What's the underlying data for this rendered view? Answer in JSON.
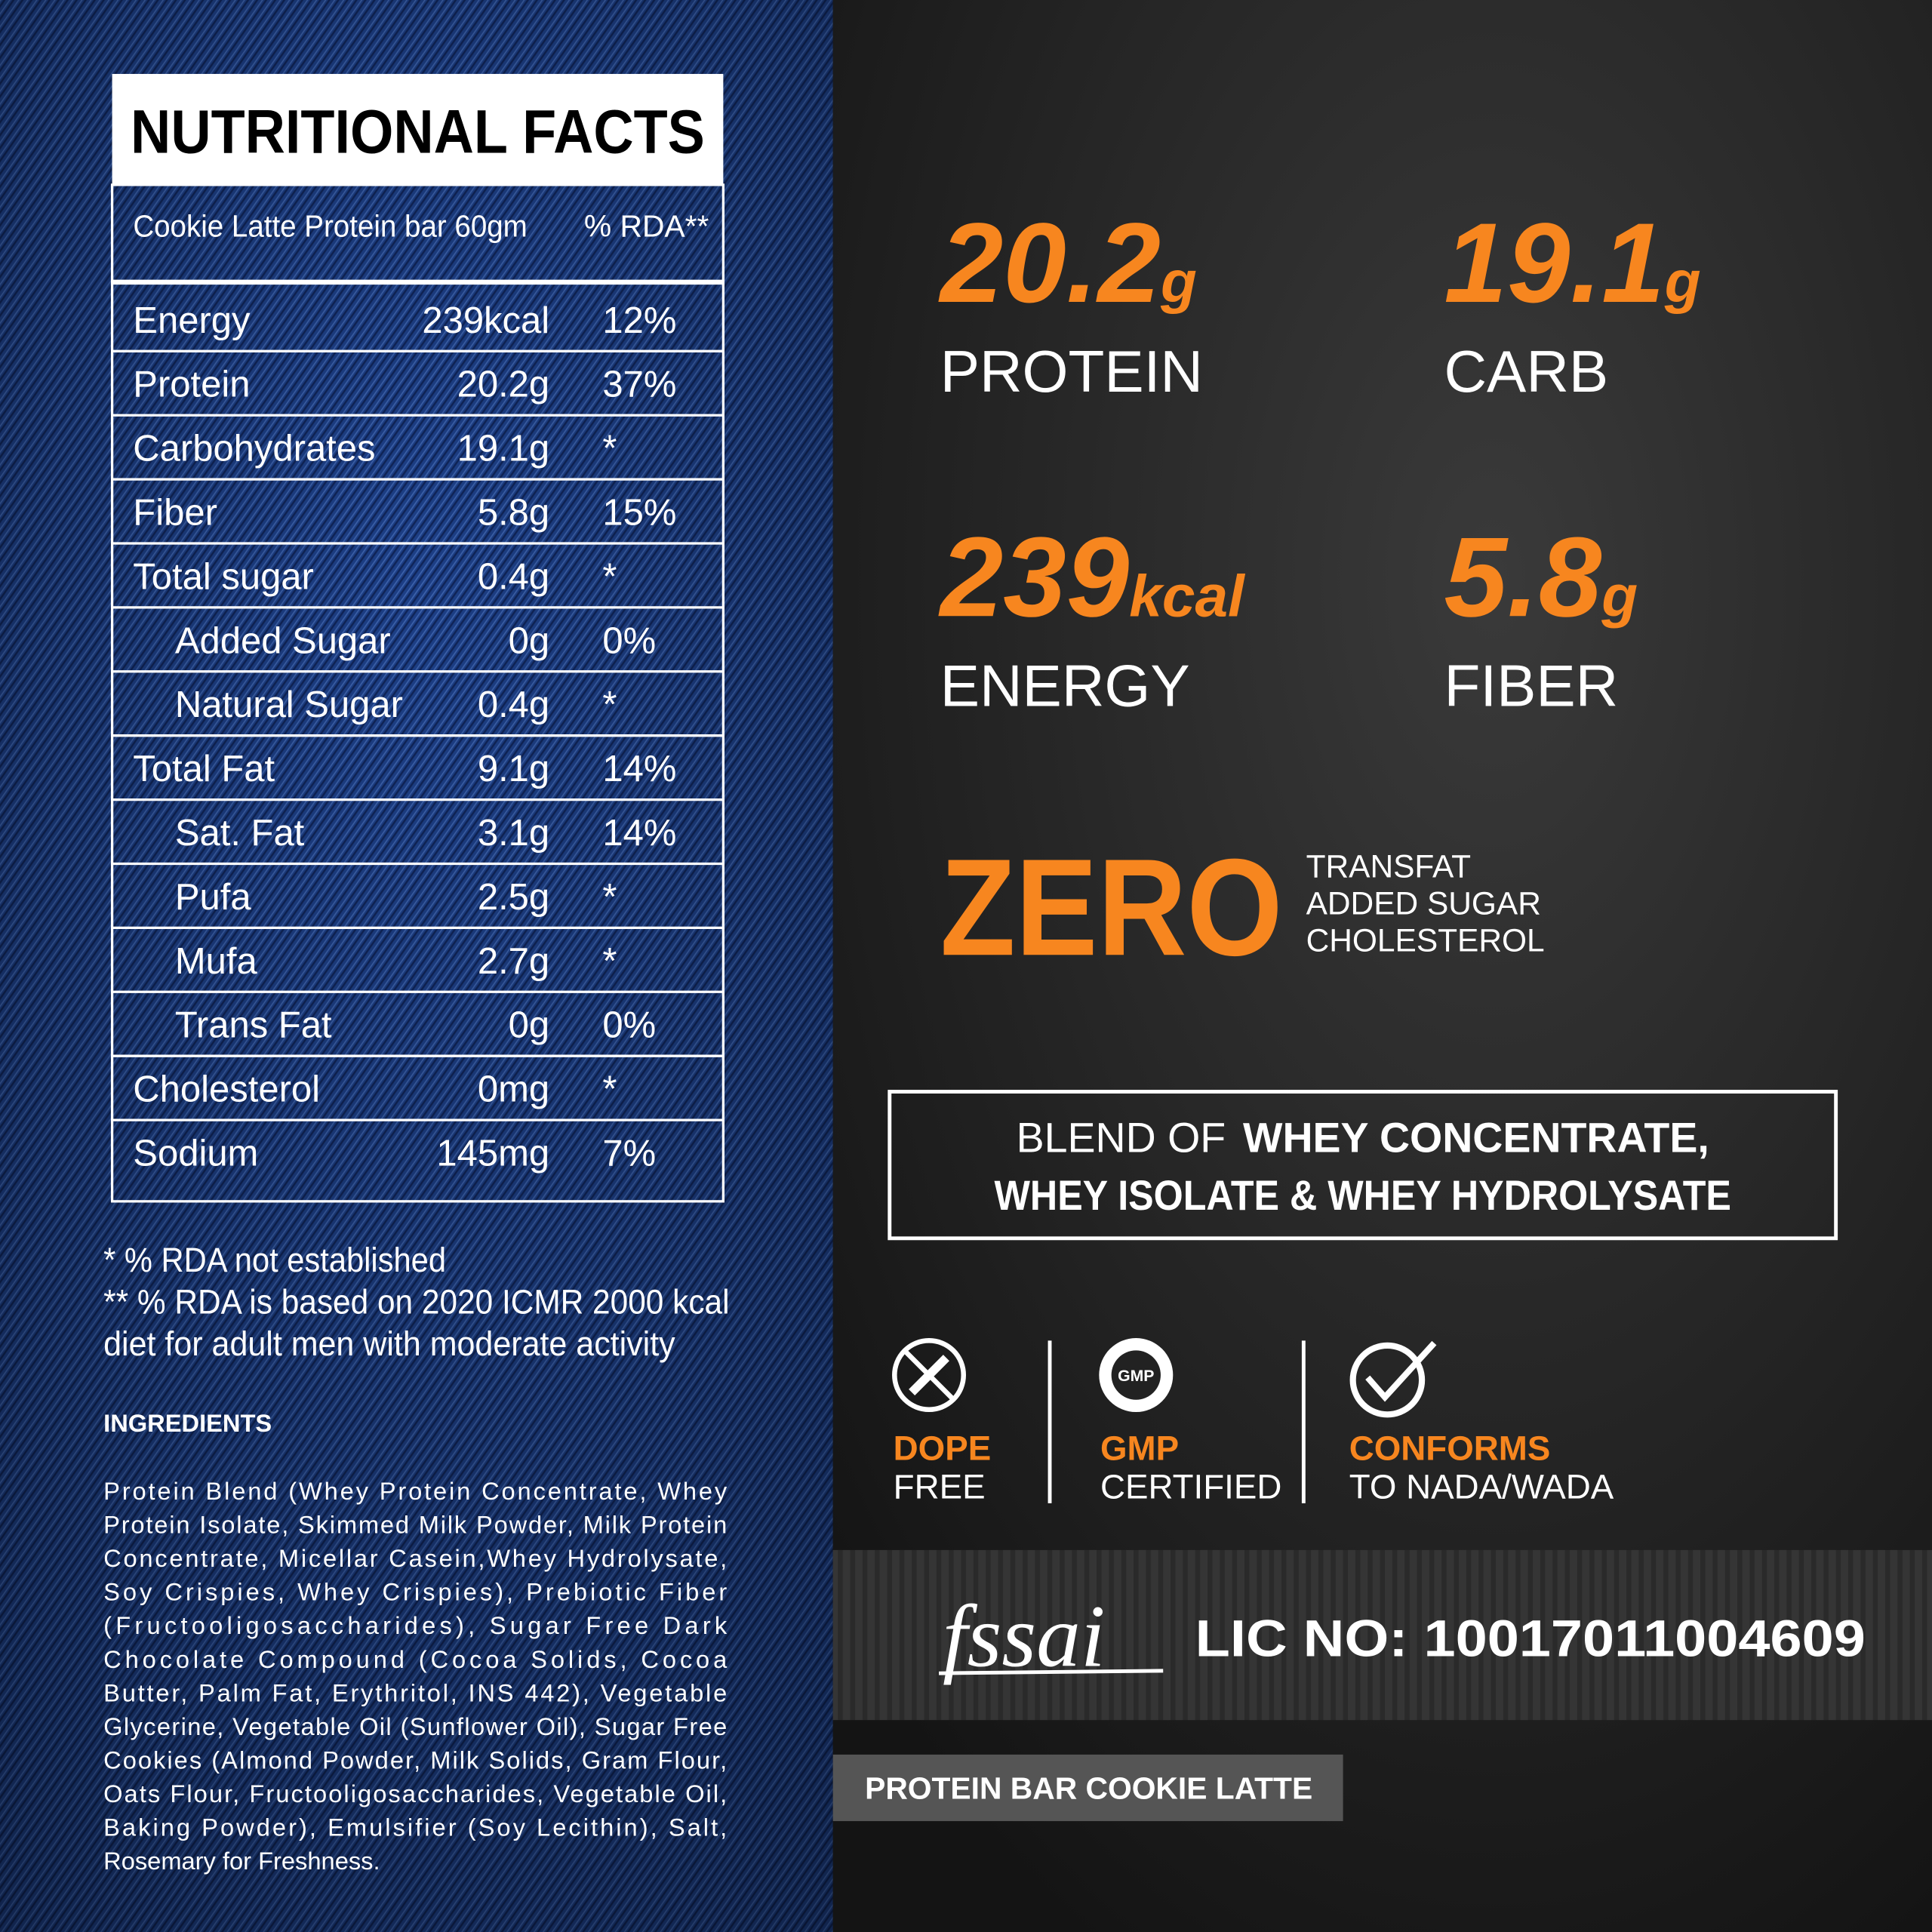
{
  "nutrition": {
    "title": "NUTRITIONAL FACTS",
    "serving": "Cookie Latte Protein bar 60gm",
    "rda_header": "% RDA**",
    "rows": [
      {
        "name": "Energy",
        "amount": "239kcal",
        "rda": "12%"
      },
      {
        "name": "Protein",
        "amount": "20.2g",
        "rda": "37%"
      },
      {
        "name": "Carbohydrates",
        "amount": "19.1g",
        "rda": "*"
      },
      {
        "name": "Fiber",
        "amount": "5.8g",
        "rda": "15%"
      },
      {
        "name": "Total sugar",
        "amount": "0.4g",
        "rda": "*"
      },
      {
        "name": "Added Sugar",
        "amount": "0g",
        "rda": "0%",
        "indent": true
      },
      {
        "name": "Natural Sugar",
        "amount": "0.4g",
        "rda": "*",
        "indent": true
      },
      {
        "name": "Total Fat",
        "amount": "9.1g",
        "rda": "14%"
      },
      {
        "name": "Sat. Fat",
        "amount": "3.1g",
        "rda": "14%",
        "indent": true
      },
      {
        "name": "Pufa",
        "amount": "2.5g",
        "rda": "*",
        "indent": true
      },
      {
        "name": "Mufa",
        "amount": "2.7g",
        "rda": "*",
        "indent": true
      },
      {
        "name": "Trans Fat",
        "amount": "0g",
        "rda": "0%",
        "indent": true
      },
      {
        "name": "Cholesterol",
        "amount": "0mg",
        "rda": "*"
      },
      {
        "name": "Sodium",
        "amount": "145mg",
        "rda": "7%"
      }
    ]
  },
  "footnotes": [
    "* % RDA not established",
    "** % RDA is based on 2020 ICMR 2000 kcal",
    "diet for adult men with moderate activity"
  ],
  "ingredients": {
    "title": "INGREDIENTS",
    "lines": [
      "Protein Blend (Whey Protein Concentrate, Whey",
      "Protein Isolate, Skimmed Milk Powder, Milk Protein",
      "Concentrate, Micellar Casein,Whey Hydrolysate,",
      "Soy Crispies, Whey Crispies), Prebiotic Fiber",
      "(Fructooligosaccharides), Sugar Free Dark",
      "Chocolate Compound (Cocoa Solids, Cocoa",
      "Butter, Palm Fat, Erythritol, INS 442), Vegetable",
      "Glycerine, Vegetable Oil (Sunflower Oil), Sugar Free",
      "Cookies (Almond Powder, Milk Solids, Gram Flour,",
      "Oats Flour, Fructooligosaccharides, Vegetable Oil,",
      "Baking Powder), Emulsifier (Soy Lecithin), Salt,",
      "Rosemary for Freshness."
    ]
  },
  "highlights": [
    {
      "value": "20.2",
      "unit": "g",
      "label": "PROTEIN"
    },
    {
      "value": "19.1",
      "unit": "g",
      "label": "CARB"
    },
    {
      "value": "239",
      "unit": "kcal",
      "label": "ENERGY"
    },
    {
      "value": "5.8",
      "unit": "g",
      "label": "FIBER"
    }
  ],
  "zero": {
    "word": "ZERO",
    "items": [
      "TRANSFAT",
      "ADDED SUGAR",
      "CHOLESTEROL"
    ]
  },
  "blend": {
    "prefix": "BLEND OF",
    "line1": "WHEY CONCENTRATE,",
    "line2": "WHEY ISOLATE & WHEY HYDROLYSATE"
  },
  "badges": [
    {
      "title": "DOPE",
      "subtitle": "FREE"
    },
    {
      "title": "GMP",
      "subtitle": "CERTIFIED",
      "icon_text": "GMP"
    },
    {
      "title": "CONFORMS",
      "subtitle": "TO NADA/WADA"
    }
  ],
  "license": {
    "logo": "fssai",
    "text": "LIC NO: 10017011004609"
  },
  "product": "PROTEIN BAR COOKIE LATTE"
}
